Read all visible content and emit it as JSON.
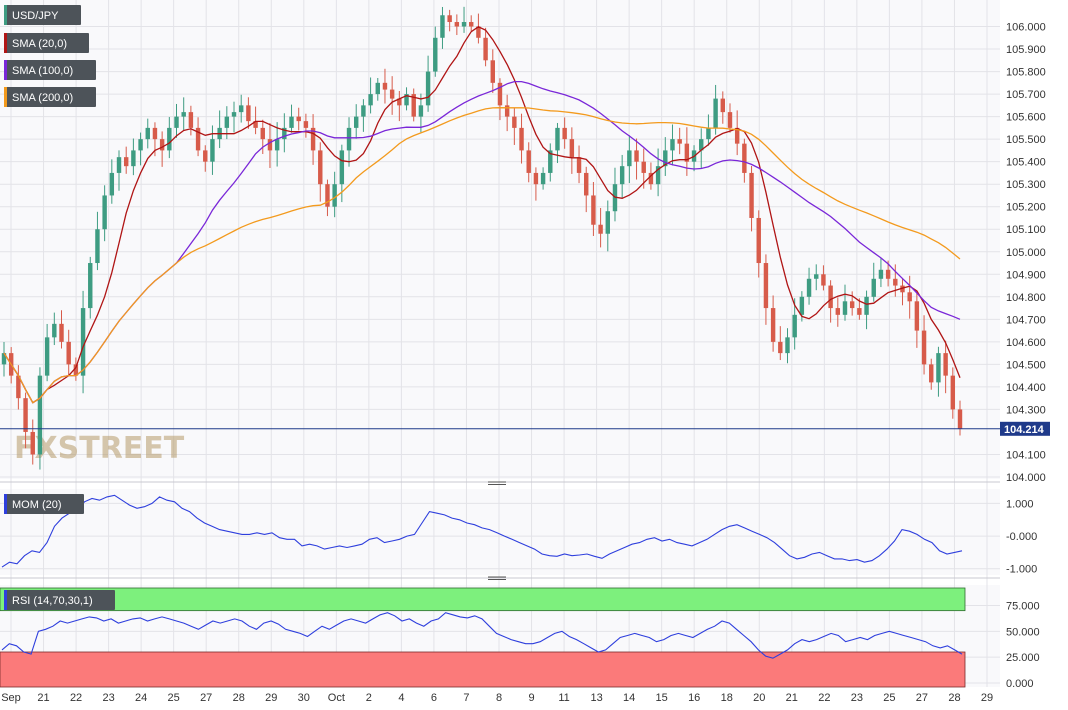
{
  "chart_data": {
    "type": "candlestick",
    "symbol": "USD/JPY",
    "indicators": [
      {
        "name": "SMA (20,0)",
        "color": "#b01515"
      },
      {
        "name": "SMA (100,0)",
        "color": "#7a27d8"
      },
      {
        "name": "SMA (200,0)",
        "color": "#f39a1d"
      }
    ],
    "up_color": "#3e9c82",
    "down_color": "#d75b4a",
    "last_price": "104.214",
    "price_ylim": [
      104.0,
      106.1
    ],
    "price_ticks": [
      "106.000",
      "105.900",
      "105.800",
      "105.700",
      "105.600",
      "105.500",
      "105.400",
      "105.300",
      "105.200",
      "105.100",
      "105.000",
      "104.900",
      "104.800",
      "104.700",
      "104.600",
      "104.500",
      "104.400",
      "104.300",
      "104.100",
      "104.000"
    ],
    "x_labels": [
      "Sep",
      "21",
      "22",
      "23",
      "24",
      "25",
      "27",
      "28",
      "29",
      "30",
      "Oct",
      "2",
      "4",
      "6",
      "7",
      "8",
      "9",
      "11",
      "13",
      "14",
      "15",
      "16",
      "18",
      "20",
      "21",
      "22",
      "23",
      "25",
      "27",
      "28",
      "29"
    ],
    "price_path": [
      104.55,
      104.45,
      104.35,
      104.2,
      104.1,
      104.45,
      104.62,
      104.68,
      104.6,
      104.5,
      104.45,
      104.75,
      104.95,
      105.1,
      105.25,
      105.35,
      105.42,
      105.38,
      105.45,
      105.5,
      105.55,
      105.5,
      105.45,
      105.55,
      105.6,
      105.62,
      105.55,
      105.45,
      105.4,
      105.5,
      105.55,
      105.6,
      105.62,
      105.65,
      105.58,
      105.55,
      105.5,
      105.45,
      105.5,
      105.55,
      105.6,
      105.58,
      105.55,
      105.45,
      105.3,
      105.2,
      105.3,
      105.45,
      105.55,
      105.6,
      105.65,
      105.7,
      105.75,
      105.72,
      105.68,
      105.65,
      105.7,
      105.6,
      105.65,
      105.8,
      105.95,
      106.05,
      106.02,
      106.0,
      106.02,
      106.0,
      105.95,
      105.85,
      105.75,
      105.65,
      105.6,
      105.55,
      105.45,
      105.35,
      105.3,
      105.35,
      105.45,
      105.55,
      105.5,
      105.42,
      105.35,
      105.25,
      105.12,
      105.08,
      105.18,
      105.3,
      105.38,
      105.45,
      105.4,
      105.35,
      105.3,
      105.38,
      105.45,
      105.5,
      105.48,
      105.4,
      105.45,
      105.5,
      105.55,
      105.68,
      105.62,
      105.55,
      105.48,
      105.35,
      105.15,
      104.95,
      104.75,
      104.6,
      104.55,
      104.62,
      104.72,
      104.8,
      104.88,
      104.9,
      104.85,
      104.75,
      104.72,
      104.78,
      104.75,
      104.72,
      104.8,
      104.88,
      104.92,
      104.88,
      104.85,
      104.82,
      104.78,
      104.65,
      104.5,
      104.42,
      104.55,
      104.45,
      104.3,
      104.214
    ],
    "momentum": {
      "name": "MOM (20)",
      "ticks": [
        "1.000",
        "-0.000",
        "-1.000"
      ],
      "ylim": [
        -1.1,
        1.35
      ],
      "color": "#2e3fdd",
      "values": [
        -0.95,
        -0.8,
        -0.85,
        -0.6,
        -0.45,
        -0.5,
        -0.2,
        0.3,
        0.55,
        0.7,
        0.75,
        1.05,
        1.15,
        1.1,
        1.2,
        1.25,
        1.1,
        0.95,
        0.85,
        0.9,
        1.0,
        1.2,
        1.1,
        1.05,
        0.85,
        0.75,
        0.55,
        0.4,
        0.3,
        0.2,
        0.15,
        0.1,
        0.05,
        0.05,
        0.1,
        0.05,
        0.1,
        -0.05,
        -0.1,
        -0.1,
        -0.3,
        -0.25,
        -0.3,
        -0.4,
        -0.35,
        -0.3,
        -0.35,
        -0.3,
        -0.25,
        -0.1,
        -0.05,
        -0.2,
        -0.15,
        -0.1,
        0.0,
        0.05,
        0.4,
        0.75,
        0.7,
        0.65,
        0.55,
        0.5,
        0.4,
        0.35,
        0.25,
        0.2,
        0.1,
        0.0,
        -0.1,
        -0.2,
        -0.3,
        -0.4,
        -0.55,
        -0.6,
        -0.62,
        -0.55,
        -0.6,
        -0.58,
        -0.55,
        -0.62,
        -0.68,
        -0.55,
        -0.45,
        -0.35,
        -0.25,
        -0.2,
        -0.1,
        -0.05,
        -0.15,
        -0.1,
        -0.2,
        -0.25,
        -0.3,
        -0.2,
        -0.1,
        0.05,
        0.2,
        0.3,
        0.35,
        0.25,
        0.15,
        0.05,
        -0.05,
        -0.2,
        -0.4,
        -0.6,
        -0.7,
        -0.65,
        -0.55,
        -0.5,
        -0.6,
        -0.7,
        -0.7,
        -0.75,
        -0.72,
        -0.8,
        -0.75,
        -0.6,
        -0.4,
        -0.15,
        0.2,
        0.15,
        0.05,
        -0.1,
        -0.2,
        -0.45,
        -0.55,
        -0.5,
        -0.45
      ]
    },
    "rsi": {
      "name": "RSI (14,70,30,1)",
      "ticks": [
        "75.000",
        "50.000",
        "25.000",
        "0.000"
      ],
      "ylim": [
        0,
        90
      ],
      "overbought": 70,
      "oversold": 30,
      "color": "#2e3fdd",
      "overbought_color": "#7df07d",
      "oversold_color": "#fb7a7a",
      "values": [
        32,
        38,
        36,
        30,
        28,
        50,
        52,
        55,
        60,
        58,
        60,
        62,
        64,
        63,
        60,
        62,
        58,
        60,
        62,
        63,
        60,
        62,
        64,
        62,
        60,
        58,
        55,
        52,
        56,
        60,
        58,
        60,
        62,
        60,
        55,
        52,
        58,
        60,
        57,
        52,
        50,
        48,
        45,
        50,
        55,
        52,
        56,
        60,
        62,
        60,
        58,
        62,
        66,
        68,
        65,
        60,
        62,
        58,
        55,
        60,
        62,
        68,
        66,
        64,
        63,
        65,
        62,
        55,
        48,
        45,
        42,
        40,
        38,
        38,
        40,
        44,
        48,
        50,
        45,
        42,
        38,
        34,
        30,
        32,
        38,
        44,
        46,
        48,
        46,
        44,
        40,
        42,
        46,
        48,
        46,
        44,
        48,
        52,
        55,
        60,
        58,
        52,
        46,
        40,
        32,
        26,
        24,
        28,
        32,
        38,
        42,
        40,
        42,
        45,
        48,
        46,
        40,
        42,
        44,
        42,
        46,
        48,
        50,
        48,
        46,
        44,
        42,
        40,
        36,
        34,
        36,
        32,
        28
      ]
    },
    "watermark": "FXSTREET"
  }
}
